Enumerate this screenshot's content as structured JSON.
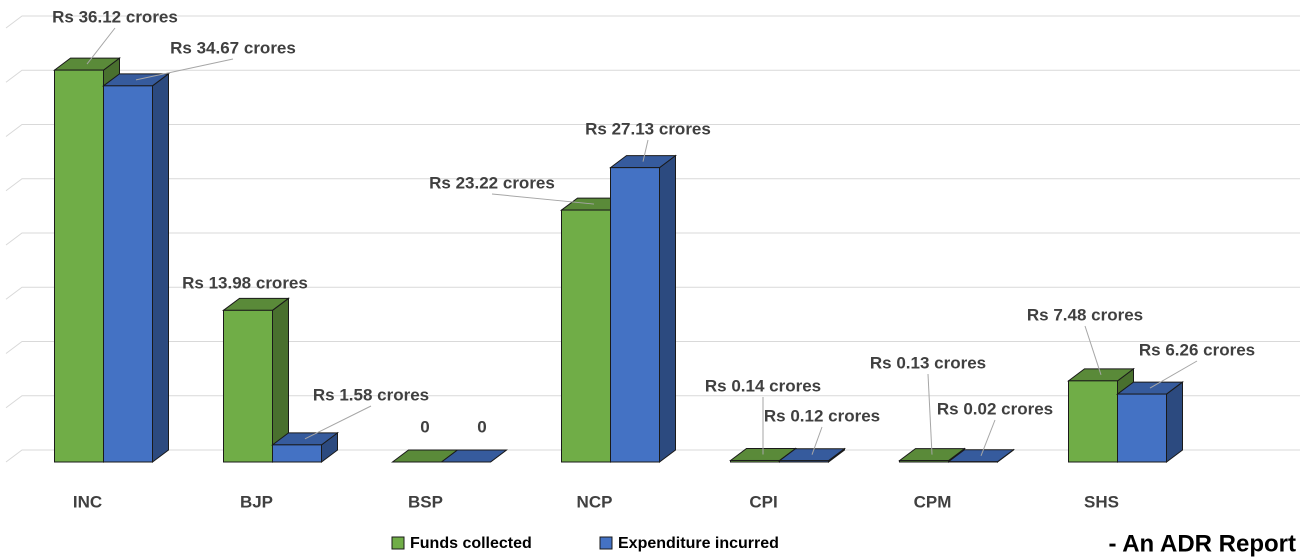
{
  "chart_data": {
    "type": "bar3d",
    "categories": [
      "INC",
      "BJP",
      "BSP",
      "NCP",
      "CPI",
      "CPM",
      "SHS"
    ],
    "series": [
      {
        "name": "Funds collected",
        "color": "#70ad47",
        "values": [
          36.12,
          13.98,
          0,
          23.22,
          0.14,
          0.13,
          7.48
        ],
        "value_labels": [
          "Rs 36.12 crores",
          "Rs 13.98 crores",
          "0",
          "Rs 23.22 crores",
          "Rs 0.14 crores",
          "Rs 0.13 crores",
          "Rs 7.48 crores"
        ]
      },
      {
        "name": "Expenditure incurred",
        "color": "#4472c4",
        "values": [
          34.67,
          1.58,
          0,
          27.13,
          0.12,
          0.02,
          6.26
        ],
        "value_labels": [
          "Rs 34.67 crores",
          "Rs 1.58 crores",
          "0",
          "Rs 27.13 crores",
          "Rs 0.12 crores",
          "Rs 0.02 crores",
          "Rs 6.26 crores"
        ]
      }
    ],
    "ylim": [
      0,
      40
    ],
    "yticks": [
      0,
      5,
      10,
      15,
      20,
      25,
      30,
      35,
      40
    ],
    "grid": true,
    "source": "- An ADR Report"
  }
}
